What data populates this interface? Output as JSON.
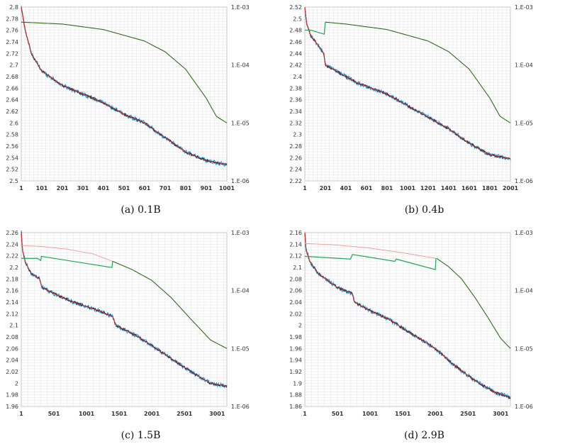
{
  "colors": {
    "noisy": "#1a9fe0",
    "smooth": "#111111",
    "trend": "#e03030",
    "lr_main": "#2e6b1a",
    "lr_sched": "#1fa65a",
    "lr_ghost": "#f0a0a0",
    "grid": "#e6e6e6",
    "axis": "#bdbdbd"
  },
  "chart_data": [
    {
      "type": "line",
      "caption": "(a) 0.1B",
      "ylim": [
        2.5,
        2.8
      ],
      "yticks": [
        "2.5",
        "2.52",
        "2.54",
        "2.56",
        "2.58",
        "2.6",
        "2.62",
        "2.64",
        "2.66",
        "2.68",
        "2.7",
        "2.72",
        "2.74",
        "2.76",
        "2.78",
        "2.8"
      ],
      "xticks": [
        "1",
        "101",
        "201",
        "301",
        "401",
        "501",
        "601",
        "701",
        "801",
        "901",
        "1001"
      ],
      "xmax": 1001,
      "y2ticks": [
        "1.E-03",
        "1.E-04",
        "1.E-05",
        "1.E-06"
      ],
      "y2lim": [
        1e-06,
        0.001
      ],
      "loss_curve": [
        [
          1,
          2.8
        ],
        [
          20,
          2.76
        ],
        [
          50,
          2.72
        ],
        [
          100,
          2.69
        ],
        [
          200,
          2.665
        ],
        [
          300,
          2.65
        ],
        [
          400,
          2.635
        ],
        [
          500,
          2.615
        ],
        [
          600,
          2.6
        ],
        [
          700,
          2.575
        ],
        [
          800,
          2.55
        ],
        [
          900,
          2.535
        ],
        [
          1001,
          2.528
        ]
      ],
      "lr_curve": [
        [
          1,
          0.00055
        ],
        [
          200,
          0.00051
        ],
        [
          400,
          0.00041
        ],
        [
          600,
          0.00026
        ],
        [
          700,
          0.00017
        ],
        [
          800,
          8.5e-05
        ],
        [
          900,
          2.7e-05
        ],
        [
          950,
          1.3e-05
        ],
        [
          1001,
          1e-05
        ]
      ],
      "lr_sched": [],
      "lr_ghost": []
    },
    {
      "type": "line",
      "caption": "(b) 0.4b",
      "ylim": [
        2.22,
        2.52
      ],
      "yticks": [
        "2.22",
        "2.24",
        "2.26",
        "2.28",
        "2.3",
        "2.32",
        "2.34",
        "2.36",
        "2.38",
        "2.4",
        "2.42",
        "2.44",
        "2.46",
        "2.48",
        "2.5",
        "2.52"
      ],
      "xticks": [
        "1",
        "201",
        "401",
        "601",
        "801",
        "1001",
        "1201",
        "1401",
        "1601",
        "1801",
        "2001"
      ],
      "xmax": 2001,
      "y2ticks": [
        "1.E-03",
        "1.E-04",
        "1.E-05",
        "1.E-06"
      ],
      "y2lim": [
        1e-06,
        0.001
      ],
      "loss_curve": [
        [
          1,
          2.52
        ],
        [
          20,
          2.49
        ],
        [
          60,
          2.47
        ],
        [
          150,
          2.45
        ],
        [
          185,
          2.44
        ],
        [
          200,
          2.42
        ],
        [
          300,
          2.41
        ],
        [
          500,
          2.39
        ],
        [
          800,
          2.37
        ],
        [
          1000,
          2.35
        ],
        [
          1200,
          2.33
        ],
        [
          1400,
          2.31
        ],
        [
          1600,
          2.285
        ],
        [
          1800,
          2.265
        ],
        [
          2001,
          2.258
        ]
      ],
      "lr_curve": [
        [
          200,
          0.00055
        ],
        [
          400,
          0.00051
        ],
        [
          800,
          0.00041
        ],
        [
          1200,
          0.00026
        ],
        [
          1400,
          0.00017
        ],
        [
          1600,
          8.5e-05
        ],
        [
          1800,
          2.7e-05
        ],
        [
          1900,
          1.3e-05
        ],
        [
          2001,
          1e-05
        ]
      ],
      "lr_sched": [
        [
          1,
          0.0004
        ],
        [
          60,
          0.0004
        ],
        [
          190,
          0.00034
        ],
        [
          200,
          0.00055
        ]
      ],
      "lr_ghost": []
    },
    {
      "type": "line",
      "caption": "(c) 1.5B",
      "ylim": [
        1.96,
        2.26
      ],
      "yticks": [
        "1.96",
        "1.98",
        "2",
        "2.02",
        "2.04",
        "2.06",
        "2.08",
        "2.1",
        "2.12",
        "2.14",
        "2.16",
        "2.18",
        "2.2",
        "2.22",
        "2.24",
        "2.26"
      ],
      "xticks": [
        "1",
        "501",
        "1001",
        "1501",
        "2001",
        "2501",
        "3001"
      ],
      "xmax": 3150,
      "y2ticks": [
        "1.E-03",
        "1.E-04",
        "1.E-05",
        "1.E-06"
      ],
      "y2lim": [
        1e-06,
        0.001
      ],
      "loss_curve": [
        [
          1,
          2.26
        ],
        [
          20,
          2.23
        ],
        [
          60,
          2.21
        ],
        [
          150,
          2.19
        ],
        [
          280,
          2.18
        ],
        [
          320,
          2.165
        ],
        [
          500,
          2.155
        ],
        [
          800,
          2.14
        ],
        [
          1200,
          2.125
        ],
        [
          1400,
          2.115
        ],
        [
          1450,
          2.1
        ],
        [
          1800,
          2.08
        ],
        [
          2200,
          2.05
        ],
        [
          2600,
          2.02
        ],
        [
          2900,
          2.0
        ],
        [
          3150,
          1.995
        ]
      ],
      "lr_curve": [
        [
          1400,
          0.00032
        ],
        [
          1700,
          0.00023
        ],
        [
          2000,
          0.00015
        ],
        [
          2300,
          7.5e-05
        ],
        [
          2600,
          3.2e-05
        ],
        [
          2900,
          1.4e-05
        ],
        [
          3150,
          1e-05
        ]
      ],
      "lr_sched": [
        [
          1,
          0.00036
        ],
        [
          250,
          0.00036
        ],
        [
          300,
          0.00033
        ],
        [
          310,
          0.00039
        ],
        [
          1390,
          0.00025
        ],
        [
          1400,
          0.00032
        ]
      ],
      "lr_ghost": [
        [
          1,
          0.0006
        ],
        [
          300,
          0.00058
        ],
        [
          700,
          0.00052
        ],
        [
          1100,
          0.00043
        ],
        [
          1400,
          0.00032
        ]
      ]
    },
    {
      "type": "line",
      "caption": "(d) 2.9B",
      "ylim": [
        1.86,
        2.16
      ],
      "yticks": [
        "1.86",
        "1.88",
        "1.9",
        "1.92",
        "1.94",
        "1.96",
        "1.98",
        "2",
        "2.02",
        "2.04",
        "2.06",
        "2.08",
        "2.1",
        "2.12",
        "2.14",
        "2.16"
      ],
      "xticks": [
        "1",
        "501",
        "1001",
        "1501",
        "2001",
        "2501",
        "3001"
      ],
      "xmax": 3150,
      "y2ticks": [
        "1.E-03",
        "1.E-04",
        "1.E-05",
        "1.E-06"
      ],
      "y2lim": [
        1e-06,
        0.001
      ],
      "loss_curve": [
        [
          1,
          2.16
        ],
        [
          20,
          2.13
        ],
        [
          80,
          2.11
        ],
        [
          200,
          2.09
        ],
        [
          500,
          2.065
        ],
        [
          730,
          2.055
        ],
        [
          760,
          2.04
        ],
        [
          1000,
          2.025
        ],
        [
          1300,
          2.01
        ],
        [
          1500,
          1.995
        ],
        [
          2000,
          1.96
        ],
        [
          2300,
          1.93
        ],
        [
          2600,
          1.905
        ],
        [
          2900,
          1.885
        ],
        [
          3150,
          1.875
        ]
      ],
      "lr_curve": [
        [
          2020,
          0.00036
        ],
        [
          2200,
          0.00026
        ],
        [
          2400,
          0.00016
        ],
        [
          2600,
          7.8e-05
        ],
        [
          2800,
          3.5e-05
        ],
        [
          3000,
          1.5e-05
        ],
        [
          3150,
          1e-05
        ]
      ],
      "lr_sched": [
        [
          1,
          0.00039
        ],
        [
          700,
          0.00035
        ],
        [
          730,
          0.00042
        ],
        [
          1380,
          0.00032
        ],
        [
          1400,
          0.00035
        ],
        [
          2000,
          0.00023
        ],
        [
          2010,
          0.00036
        ]
      ],
      "lr_ghost": [
        [
          1,
          0.00065
        ],
        [
          500,
          0.00061
        ],
        [
          1000,
          0.00054
        ],
        [
          1500,
          0.00045
        ],
        [
          2010,
          0.00036
        ]
      ]
    }
  ]
}
